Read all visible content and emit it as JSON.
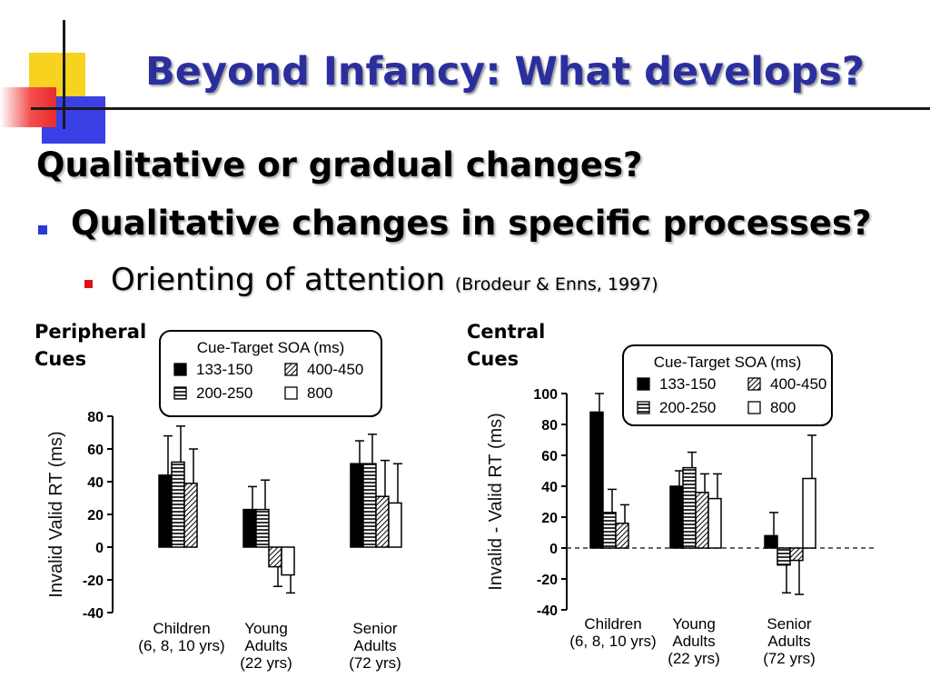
{
  "slide": {
    "title": "Beyond Infancy: What develops?",
    "line1": "Qualitative or gradual changes?",
    "line2": "Qualitative changes in specific processes?",
    "line3": "Orienting of attention",
    "line3_cite": "(Brodeur & Enns, 1997)"
  },
  "colors": {
    "title": "#2b2f9e",
    "bullet_level1": "#2b36d6",
    "bullet_level2": "#e01010"
  },
  "chart_data": [
    {
      "type": "bar",
      "panel_label": "Peripheral\nCues",
      "legend_title": "Cue-Target SOA (ms)",
      "ylabel": "Invalid   Valid RT (ms)",
      "ylim": [
        -40,
        80
      ],
      "yticks": [
        80,
        60,
        40,
        20,
        0,
        -20,
        -40
      ],
      "categories": [
        "Children\n(6, 8, 10 yrs)",
        "Young\nAdults\n(22 yrs)",
        "Senior\nAdults\n(72 yrs)"
      ],
      "series": [
        {
          "name": "133-150",
          "pattern": "solid",
          "values": [
            44,
            23,
            51
          ],
          "errors": [
            24,
            14,
            14
          ]
        },
        {
          "name": "200-250",
          "pattern": "hlines",
          "values": [
            52,
            23,
            51
          ],
          "errors": [
            22,
            18,
            18
          ]
        },
        {
          "name": "400-450",
          "pattern": "diag",
          "values": [
            39,
            -12,
            31
          ],
          "errors": [
            21,
            12,
            22
          ]
        },
        {
          "name": "800",
          "pattern": "open",
          "values": [
            null,
            -17,
            27
          ],
          "errors": [
            null,
            11,
            24
          ]
        }
      ],
      "legend_position": "top-right"
    },
    {
      "type": "bar",
      "panel_label": "Central\nCues",
      "legend_title": "Cue-Target SOA (ms)",
      "ylabel": "Invalid - Valid RT (ms)",
      "ylim": [
        -40,
        100
      ],
      "yticks": [
        100,
        80,
        60,
        40,
        20,
        0,
        -20,
        -40
      ],
      "categories": [
        "Children\n(6, 8, 10 yrs)",
        "Young\nAdults\n(22 yrs)",
        "Senior\nAdults\n(72 yrs)"
      ],
      "series": [
        {
          "name": "133-150",
          "pattern": "solid",
          "values": [
            88,
            40,
            8
          ],
          "errors": [
            12,
            10,
            15
          ]
        },
        {
          "name": "200-250",
          "pattern": "hlines",
          "values": [
            23,
            52,
            -11
          ],
          "errors": [
            15,
            10,
            18
          ]
        },
        {
          "name": "400-450",
          "pattern": "diag",
          "values": [
            16,
            36,
            -8
          ],
          "errors": [
            12,
            12,
            22
          ]
        },
        {
          "name": "800",
          "pattern": "open",
          "values": [
            null,
            32,
            45
          ],
          "errors": [
            null,
            16,
            28
          ]
        }
      ],
      "zero_line": "dashed",
      "legend_position": "top-right"
    }
  ]
}
